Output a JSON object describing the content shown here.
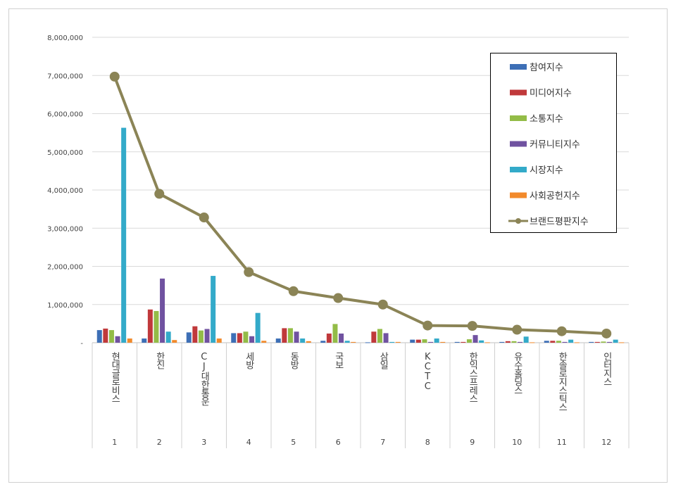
{
  "chart_data": {
    "type": "bar+line",
    "title": "",
    "xlabel": "",
    "ylabel": "",
    "ylim": [
      0,
      8000000
    ],
    "yticks": [
      "-",
      "1,000,000",
      "2,000,000",
      "3,000,000",
      "4,000,000",
      "5,000,000",
      "6,000,000",
      "7,000,000",
      "8,000,000"
    ],
    "grid": true,
    "legend_position": "top-right",
    "categories": [
      "현대글로비스",
      "한진",
      "CJ대한통운",
      "세방",
      "동방",
      "국보",
      "삼일",
      "KCTC",
      "한익스프레스",
      "유수홀딩스",
      "한솔로지스틱스",
      "인터지스"
    ],
    "ranks": [
      "1",
      "2",
      "3",
      "4",
      "5",
      "6",
      "7",
      "8",
      "9",
      "10",
      "11",
      "12"
    ],
    "series": [
      {
        "name": "참여지수",
        "kind": "bar",
        "color": "#3d6fb6",
        "values": [
          330000,
          110000,
          270000,
          250000,
          110000,
          50000,
          10000,
          80000,
          20000,
          20000,
          50000,
          20000
        ]
      },
      {
        "name": "미디어지수",
        "kind": "bar",
        "color": "#c0393b",
        "values": [
          370000,
          870000,
          430000,
          250000,
          380000,
          240000,
          290000,
          80000,
          20000,
          40000,
          50000,
          20000
        ]
      },
      {
        "name": "소통지수",
        "kind": "bar",
        "color": "#93bc47",
        "values": [
          330000,
          830000,
          320000,
          290000,
          380000,
          490000,
          360000,
          90000,
          90000,
          40000,
          50000,
          30000
        ]
      },
      {
        "name": "커뮤니티지수",
        "kind": "bar",
        "color": "#7052a0",
        "values": [
          170000,
          1680000,
          360000,
          170000,
          290000,
          240000,
          250000,
          20000,
          200000,
          20000,
          20000,
          20000
        ]
      },
      {
        "name": "시장지수",
        "kind": "bar",
        "color": "#33aac9",
        "values": [
          5630000,
          290000,
          1750000,
          780000,
          110000,
          50000,
          20000,
          110000,
          60000,
          160000,
          80000,
          80000
        ]
      },
      {
        "name": "사회공헌지수",
        "kind": "bar",
        "color": "#f28a2b",
        "values": [
          110000,
          70000,
          110000,
          50000,
          40000,
          20000,
          20000,
          20000,
          10000,
          10000,
          10000,
          10000
        ]
      },
      {
        "name": "브랜드평판지수",
        "kind": "line",
        "color": "#8b8456",
        "values": [
          6970000,
          3900000,
          3280000,
          1850000,
          1350000,
          1170000,
          1000000,
          450000,
          440000,
          340000,
          300000,
          240000
        ]
      }
    ]
  }
}
